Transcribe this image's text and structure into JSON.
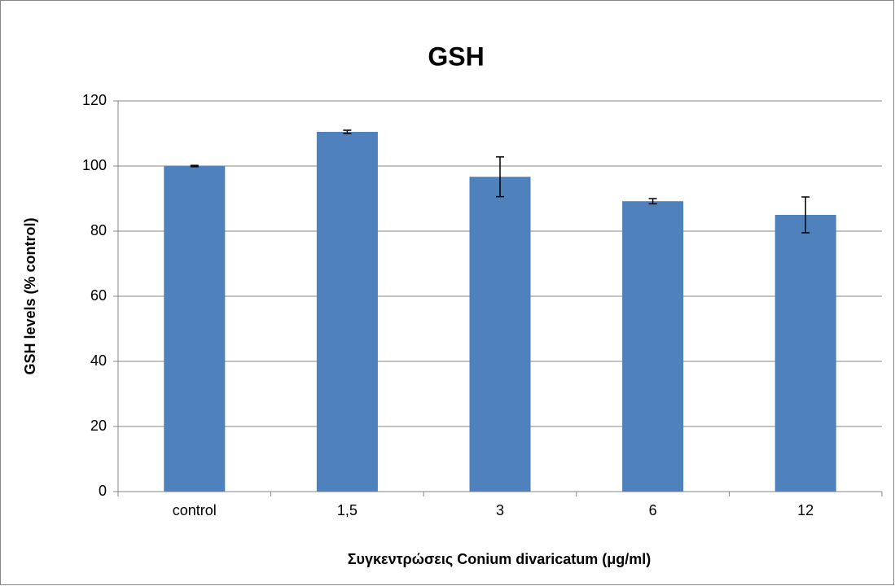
{
  "chart_data": {
    "type": "bar",
    "title": "GSH",
    "x_label": "Συγκεντρώσεις Conium divaricatum (μg/ml)",
    "y_label": "GSH levels (% control)",
    "categories": [
      "control",
      "1,5",
      "3",
      "6",
      "12"
    ],
    "values": [
      100,
      110.5,
      96.7,
      89.2,
      85
    ],
    "errors": [
      0.2,
      0.5,
      6.1,
      0.8,
      5.5
    ],
    "color": "#4f81bd",
    "ylim": [
      0,
      120
    ],
    "yticks": [
      0,
      20,
      40,
      60,
      80,
      100,
      120
    ],
    "grid": true
  }
}
